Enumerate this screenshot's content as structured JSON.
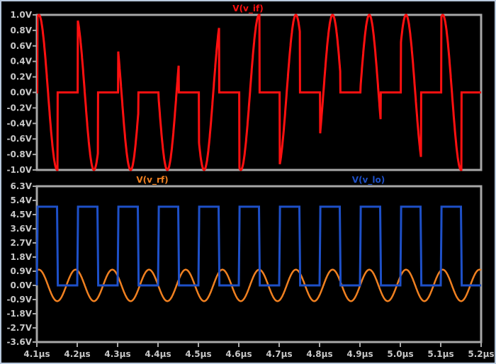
{
  "chart_data": [
    {
      "type": "line",
      "title": "V(v_if)",
      "xlim": [
        4.1,
        5.2
      ],
      "ylim": [
        -1.0,
        1.0
      ],
      "x_unit": "µs",
      "y_ticks": [
        "1.0V",
        "0.8V",
        "0.6V",
        "0.4V",
        "0.2V",
        "0.0V",
        "-0.2V",
        "-0.4V",
        "-0.6V",
        "-0.8V",
        "-1.0V"
      ],
      "series": [
        {
          "name": "V(v_if)",
          "color": "#ff1010",
          "definition": "equals V(v_rf) while V(v_lo) is high, 0 V while V(v_lo) is low"
        }
      ]
    },
    {
      "type": "line",
      "xlim": [
        4.1,
        5.2
      ],
      "ylim": [
        -3.6,
        6.3
      ],
      "x_ticks": [
        "4.1µs",
        "4.2µs",
        "4.3µs",
        "4.4µs",
        "4.5µs",
        "4.6µs",
        "4.7µs",
        "4.8µs",
        "4.9µs",
        "5.0µs",
        "5.1µs",
        "5.2µs"
      ],
      "y_ticks": [
        "6.3V",
        "5.4V",
        "4.5V",
        "3.6V",
        "2.7V",
        "1.8V",
        "0.9V",
        "0.0V",
        "-0.9V",
        "-1.8V",
        "-2.7V",
        "-3.6V"
      ],
      "series": [
        {
          "name": "V(v_rf)",
          "color": "#f08020",
          "waveform": "sine",
          "amplitude_v": 1.0,
          "frequency_mhz": 11,
          "first_peak_us": 4.105
        },
        {
          "name": "V(v_lo)",
          "color": "#1e50c8",
          "waveform": "square",
          "high_v": 5.0,
          "low_v": 0.0,
          "frequency_mhz": 10,
          "duty": 0.5,
          "rising_edge_us": 4.1
        }
      ]
    }
  ],
  "colors": {
    "background": "#000000",
    "axis": "#a8a8a8",
    "tick_text": "#c8c8c8",
    "window_border": "#b8c8dc"
  }
}
